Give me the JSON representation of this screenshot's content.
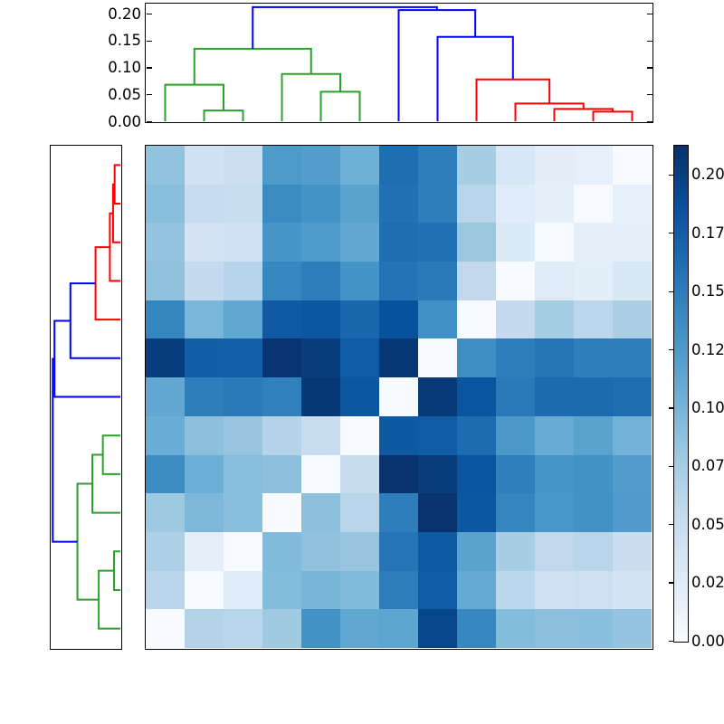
{
  "chart_data": {
    "type": "heatmap",
    "subtype": "hierarchical-clustermap",
    "n_rows": 13,
    "n_cols": 13,
    "vmin": 0.0,
    "vmax": 0.2124,
    "colormap": "Blues",
    "colormap_anchors": [
      "#f7fbff",
      "#deebf7",
      "#c6dbef",
      "#9ecae1",
      "#6baed6",
      "#4292c6",
      "#2171b5",
      "#08519c",
      "#08306b"
    ],
    "matrix": [
      [
        0.086,
        0.043,
        0.046,
        0.125,
        0.121,
        0.104,
        0.162,
        0.149,
        0.074,
        0.033,
        0.021,
        0.018,
        0.0
      ],
      [
        0.091,
        0.053,
        0.05,
        0.138,
        0.132,
        0.117,
        0.159,
        0.149,
        0.062,
        0.024,
        0.02,
        0.0,
        0.018
      ],
      [
        0.085,
        0.039,
        0.043,
        0.129,
        0.125,
        0.111,
        0.162,
        0.159,
        0.082,
        0.029,
        0.0,
        0.02,
        0.02
      ],
      [
        0.087,
        0.054,
        0.063,
        0.142,
        0.149,
        0.131,
        0.158,
        0.152,
        0.056,
        0.0,
        0.025,
        0.022,
        0.032
      ],
      [
        0.143,
        0.099,
        0.113,
        0.178,
        0.181,
        0.168,
        0.186,
        0.134,
        0.0,
        0.054,
        0.075,
        0.06,
        0.072
      ],
      [
        0.202,
        0.174,
        0.173,
        0.209,
        0.202,
        0.177,
        0.207,
        0.0,
        0.136,
        0.15,
        0.157,
        0.149,
        0.149
      ],
      [
        0.112,
        0.149,
        0.152,
        0.147,
        0.207,
        0.181,
        0.0,
        0.205,
        0.183,
        0.153,
        0.165,
        0.165,
        0.162
      ],
      [
        0.107,
        0.089,
        0.083,
        0.064,
        0.05,
        0.0,
        0.179,
        0.177,
        0.164,
        0.127,
        0.109,
        0.117,
        0.102
      ],
      [
        0.137,
        0.106,
        0.092,
        0.089,
        0.0,
        0.051,
        0.21,
        0.202,
        0.183,
        0.148,
        0.13,
        0.133,
        0.122
      ],
      [
        0.08,
        0.097,
        0.09,
        0.0,
        0.089,
        0.062,
        0.149,
        0.21,
        0.181,
        0.143,
        0.128,
        0.133,
        0.124
      ],
      [
        0.07,
        0.02,
        0.0,
        0.094,
        0.087,
        0.083,
        0.157,
        0.178,
        0.117,
        0.073,
        0.056,
        0.062,
        0.048
      ],
      [
        0.061,
        0.0,
        0.025,
        0.093,
        0.1,
        0.094,
        0.15,
        0.177,
        0.11,
        0.059,
        0.043,
        0.045,
        0.04
      ],
      [
        0.0,
        0.066,
        0.061,
        0.079,
        0.133,
        0.113,
        0.115,
        0.195,
        0.142,
        0.093,
        0.089,
        0.09,
        0.085
      ]
    ],
    "value_axis": {
      "tick_values": [
        0,
        0.05,
        0.1,
        0.15,
        0.2
      ],
      "tick_labels": [
        "0.00",
        "0.05",
        "0.10",
        "0.15",
        "0.20"
      ],
      "axis_max": 0.219
    },
    "colorbar": {
      "tick_values": [
        0,
        0.025,
        0.05,
        0.075,
        0.1,
        0.125,
        0.15,
        0.175,
        0.2
      ],
      "tick_labels": [
        "0.00",
        "0.02",
        "0.05",
        "0.07",
        "0.10",
        "0.12",
        "0.15",
        "0.17",
        "0.20"
      ]
    },
    "dendrogram_link_colors": {
      "g": "#2ca02c",
      "r": "#ff0000",
      "b": "#0000ff"
    },
    "top_dendrogram_links": [
      [
        2,
        0,
        3,
        0,
        0.02,
        "g"
      ],
      [
        1,
        0,
        2.5,
        0.02,
        0.068,
        "g"
      ],
      [
        5,
        0,
        6,
        0,
        0.055,
        "g"
      ],
      [
        4,
        0,
        5.5,
        0.055,
        0.088,
        "g"
      ],
      [
        1.75,
        0.068,
        4.75,
        0.088,
        0.135,
        "g"
      ],
      [
        12,
        0,
        13,
        0,
        0.018,
        "r"
      ],
      [
        11,
        0,
        12.5,
        0.018,
        0.023,
        "r"
      ],
      [
        10,
        0,
        11.75,
        0.023,
        0.033,
        "r"
      ],
      [
        9,
        0,
        10.875,
        0.033,
        0.078,
        "r"
      ],
      [
        8,
        0,
        9.9375,
        0.078,
        0.157,
        "b"
      ],
      [
        7,
        0,
        8.96875,
        0.157,
        0.207,
        "b"
      ],
      [
        3.25,
        0.135,
        7.984375,
        0.207,
        0.2125,
        "b"
      ]
    ],
    "left_dendrogram_links": [
      [
        1,
        0,
        2,
        0,
        0.018,
        "r"
      ],
      [
        1.5,
        0.018,
        3,
        0,
        0.023,
        "r"
      ],
      [
        2.25,
        0.023,
        4,
        0,
        0.033,
        "r"
      ],
      [
        3.125,
        0.033,
        5,
        0,
        0.078,
        "r"
      ],
      [
        4.0625,
        0.078,
        6,
        0,
        0.157,
        "b"
      ],
      [
        5.03125,
        0.157,
        7,
        0,
        0.207,
        "b"
      ],
      [
        8,
        0,
        9,
        0,
        0.055,
        "g"
      ],
      [
        8.5,
        0.055,
        10,
        0,
        0.088,
        "g"
      ],
      [
        11,
        0,
        12,
        0,
        0.02,
        "g"
      ],
      [
        11.5,
        0.02,
        13,
        0,
        0.068,
        "g"
      ],
      [
        9.25,
        0.088,
        12.25,
        0.068,
        0.135,
        "g"
      ],
      [
        6.015625,
        0.207,
        10.75,
        0.135,
        0.2125,
        "b"
      ]
    ]
  }
}
